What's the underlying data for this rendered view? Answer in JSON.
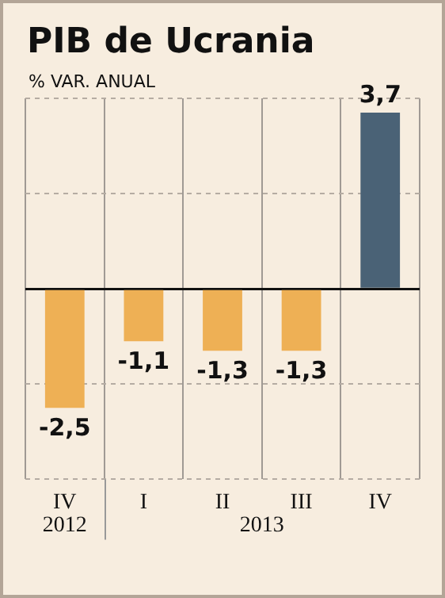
{
  "chart_data": {
    "type": "bar",
    "title": "PIB de Ucrania",
    "subtitle": "% VAR. ANUAL",
    "categories": [
      "IV",
      "I",
      "II",
      "III",
      "IV"
    ],
    "values": [
      -2.5,
      -1.1,
      -1.3,
      -1.3,
      3.7
    ],
    "colors": [
      "#eeb055",
      "#eeb055",
      "#eeb055",
      "#eeb055",
      "#4a6276"
    ],
    "value_labels": [
      "-2,5",
      "-1,1",
      "-1,3",
      "-1,3",
      "3,7"
    ],
    "ylim": [
      -4,
      4
    ],
    "yticks": [
      {
        "value": -4,
        "label": null
      },
      {
        "value": -2,
        "label": null
      },
      {
        "value": 0,
        "label": null
      },
      {
        "value": 2,
        "label": null
      },
      {
        "value": 4,
        "label": null
      }
    ],
    "tick_labels": "x",
    "grid": true,
    "legend": false,
    "annotations": [
      "2012",
      "2013"
    ]
  }
}
